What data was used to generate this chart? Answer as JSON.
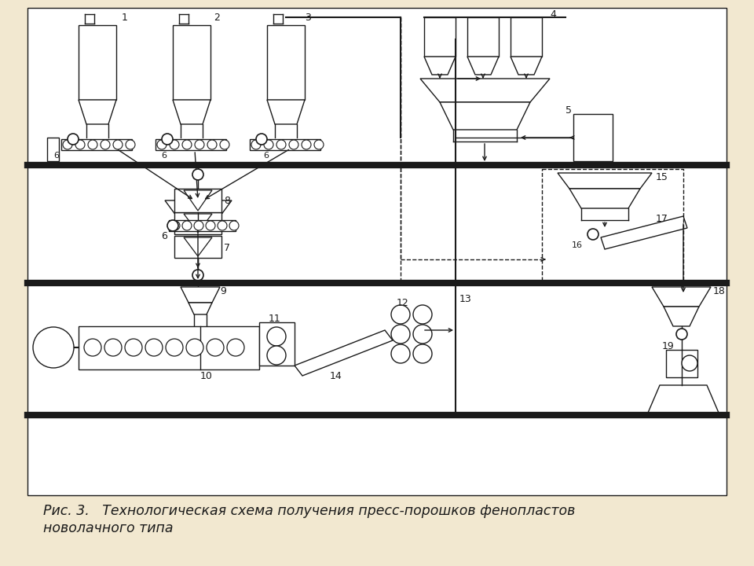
{
  "title_line1": "Рис. 3.   Технологическая схема получения пресс-порошков фенопластов",
  "title_line2": "новолачного типа",
  "bg_color": "#f2e8d0",
  "line_color": "#1a1a1a",
  "title_fontsize": 12.5
}
